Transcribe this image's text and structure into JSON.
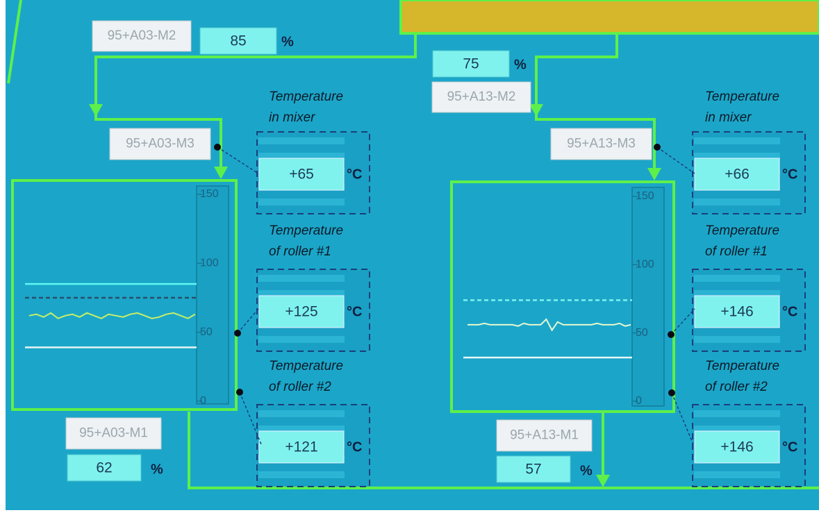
{
  "units": [
    {
      "motor_top": {
        "label": "95+A03-M2",
        "value": 85,
        "unit": "%"
      },
      "motor_mid": {
        "label": "95+A03-M3"
      },
      "motor_bottom": {
        "label": "95+A03-M1",
        "value": 62,
        "unit": "%"
      },
      "temperatures": [
        {
          "label_lines": [
            "Temperature",
            "in mixer"
          ],
          "value": "+65",
          "unit": "°C"
        },
        {
          "label_lines": [
            "Temperature",
            "of roller #1"
          ],
          "value": "+125",
          "unit": "°C"
        },
        {
          "label_lines": [
            "Temperature",
            "of roller #2"
          ],
          "value": "+121",
          "unit": "°C"
        }
      ],
      "trend": {
        "ylim": [
          0,
          150
        ],
        "yticks": [
          150,
          100,
          50,
          0
        ],
        "upper": 85,
        "setpoint": 75,
        "lower": 39,
        "trace": [
          62,
          63,
          61,
          64,
          60,
          62,
          63,
          61,
          64,
          62,
          60,
          63,
          62,
          61,
          63,
          64,
          62,
          60,
          61,
          63,
          64,
          62,
          60,
          63
        ]
      }
    },
    {
      "motor_top": {
        "label": "95+A13-M2",
        "value": 75,
        "unit": "%"
      },
      "motor_mid": {
        "label": "95+A13-M3"
      },
      "motor_bottom": {
        "label": "95+A13-M1",
        "value": 57,
        "unit": "%"
      },
      "temperatures": [
        {
          "label_lines": [
            "Temperature",
            "in mixer"
          ],
          "value": "+66",
          "unit": "°C"
        },
        {
          "label_lines": [
            "Temperature",
            "of roller #1"
          ],
          "value": "+146",
          "unit": "°C"
        },
        {
          "label_lines": [
            "Temperature",
            "of roller #2"
          ],
          "value": "+146",
          "unit": "°C"
        }
      ],
      "trend": {
        "ylim": [
          0,
          150
        ],
        "yticks": [
          150,
          100,
          50,
          0
        ],
        "setpoint": 74,
        "lower": 32,
        "trace": [
          56,
          56,
          56,
          57,
          56,
          56,
          56,
          56,
          56,
          55,
          57,
          56,
          56,
          56,
          60,
          52,
          58,
          56,
          56,
          56,
          56,
          56,
          56,
          57,
          56,
          56,
          56,
          57,
          55,
          56
        ]
      }
    }
  ]
}
